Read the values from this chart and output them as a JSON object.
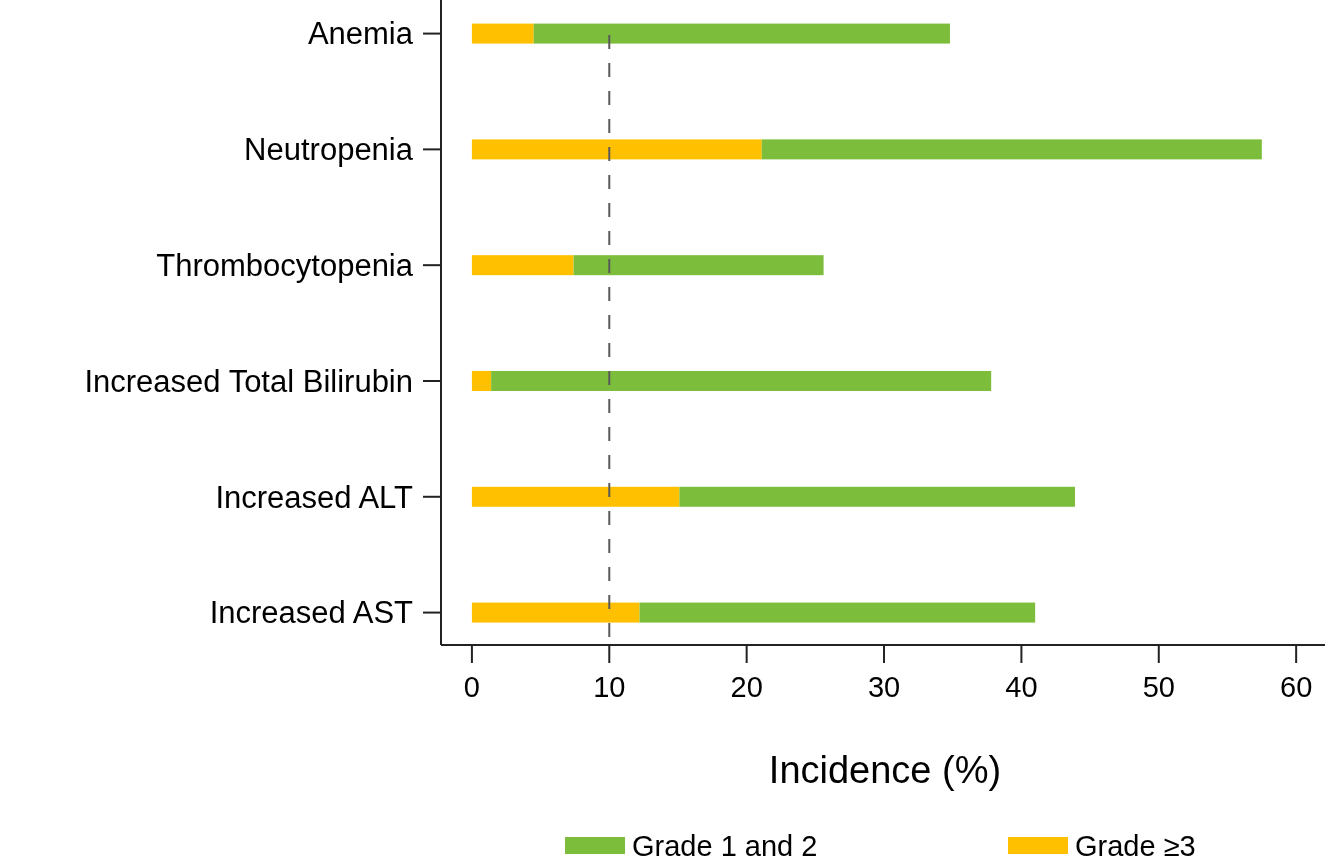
{
  "chart_data": {
    "type": "bar",
    "orientation": "horizontal",
    "stacked": true,
    "xlabel": "Incidence (%)",
    "categories": [
      "Anemia",
      "Neutropenia",
      "Thrombocytopenia",
      "Increased Total Bilirubin",
      "Increased ALT",
      "Increased AST"
    ],
    "series": [
      {
        "name": "Grade ≥3",
        "color": "#ffc000",
        "values": [
          4.5,
          21.1,
          7.4,
          1.4,
          15.1,
          12.2
        ]
      },
      {
        "name": "Grade 1 and 2",
        "color": "#7cbd3c",
        "values": [
          30.3,
          36.4,
          18.2,
          36.4,
          28.8,
          28.8
        ]
      }
    ],
    "xlim": [
      -2.25,
      62.1
    ],
    "xticks": [
      0,
      10,
      20,
      30,
      40,
      50,
      60
    ],
    "ref_lines": [
      {
        "axis": "x",
        "value": 10,
        "color": "#595959",
        "line_style": "dashed"
      }
    ],
    "legend": "bottom",
    "grid": false
  }
}
